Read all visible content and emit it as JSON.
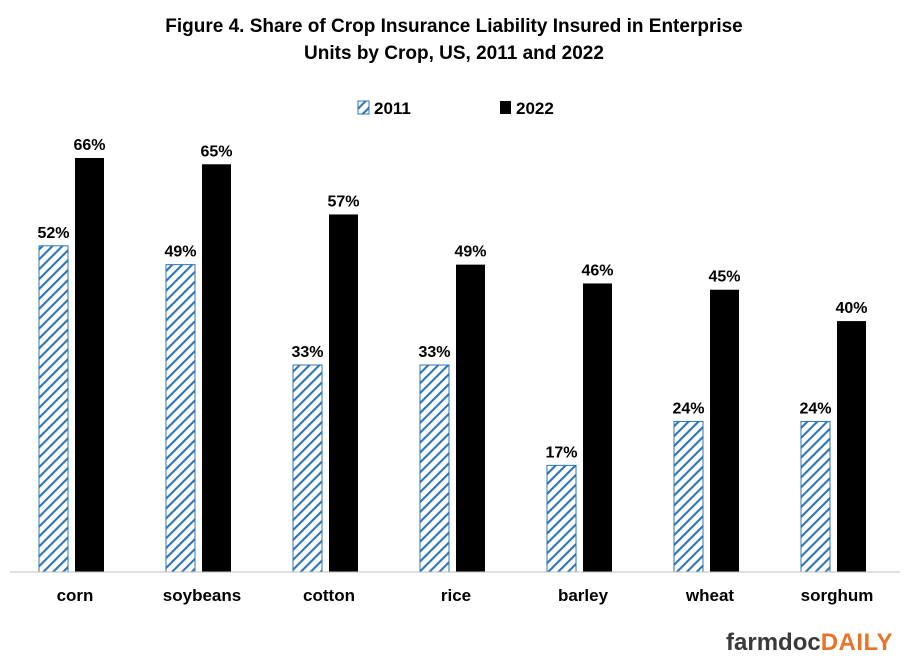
{
  "chart_data": {
    "type": "bar",
    "title_lines": [
      "Figure  4. Share of Crop Insurance Liability Insured in Enterprise",
      "Units by Crop, US, 2011 and 2022"
    ],
    "categories": [
      "corn",
      "soybeans",
      "cotton",
      "rice",
      "barley",
      "wheat",
      "sorghum"
    ],
    "series": [
      {
        "name": "2011",
        "values": [
          52,
          49,
          33,
          33,
          17,
          24,
          24
        ],
        "labels": [
          "52%",
          "49%",
          "33%",
          "33%",
          "17%",
          "24%",
          "24%"
        ],
        "style": "diagonal-hatch",
        "color": "#2e75b6"
      },
      {
        "name": "2022",
        "values": [
          66,
          65,
          57,
          49,
          46,
          45,
          40
        ],
        "labels": [
          "66%",
          "65%",
          "57%",
          "49%",
          "46%",
          "45%",
          "40%"
        ],
        "style": "solid",
        "color": "#000000"
      }
    ],
    "ylim": [
      0,
      75
    ],
    "unit": "%",
    "legend_position": "top-center",
    "grid": false,
    "y_axis_visible": false
  },
  "logo": {
    "part1": "farmdoc",
    "part2": "DAILY",
    "color_dark": "#3a3a3a",
    "color_accent": "#e8742a"
  }
}
